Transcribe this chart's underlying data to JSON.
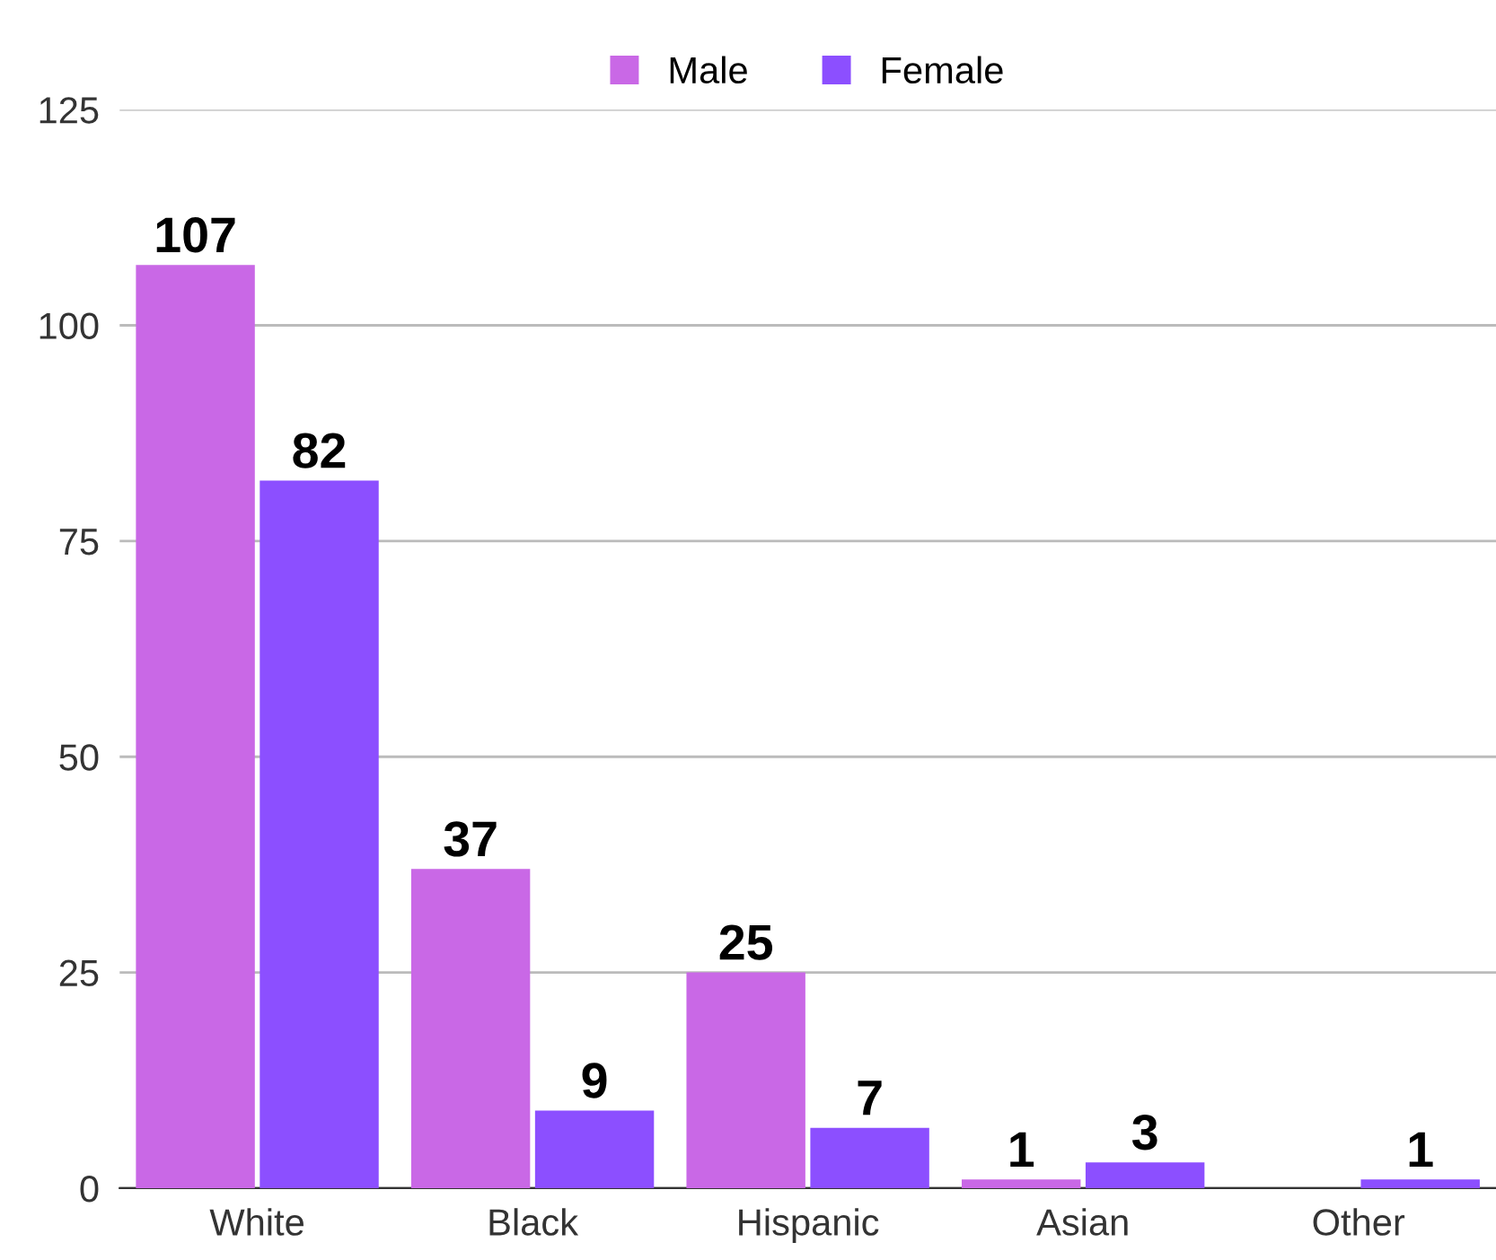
{
  "chart_data": {
    "type": "bar",
    "categories": [
      "White",
      "Black",
      "Hispanic",
      "Asian",
      "Other"
    ],
    "series": [
      {
        "name": "Male",
        "color": "#c968e6",
        "values": [
          107,
          37,
          25,
          1,
          0
        ],
        "value_labels": [
          "107",
          "37",
          "25",
          "1",
          null
        ]
      },
      {
        "name": "Female",
        "color": "#8c4fff",
        "values": [
          82,
          9,
          7,
          3,
          1
        ],
        "value_labels": [
          "82",
          "9",
          "7",
          "3",
          "1"
        ]
      }
    ],
    "ylim": [
      0,
      125
    ],
    "yticks": [
      0,
      25,
      50,
      75,
      100,
      125
    ],
    "grid": "y",
    "legend": "top"
  }
}
